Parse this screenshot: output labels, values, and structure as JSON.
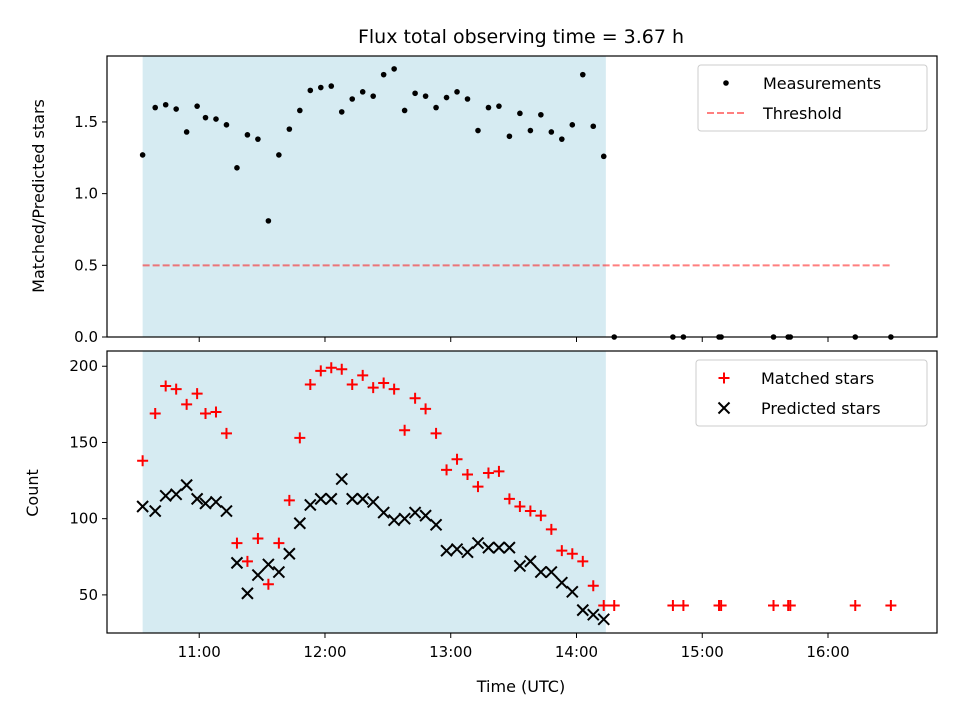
{
  "colors": {
    "shade": "#add8e6",
    "threshold": "#ff0000",
    "matched": "#ff0000",
    "predicted": "#000000",
    "measurements": "#000000"
  },
  "chart_data": [
    {
      "type": "scatter",
      "title": "Flux total observing time = 3.67 h",
      "xlabel": "",
      "ylabel": "Matched/Predicted stars",
      "xlim": [
        "10:16",
        "16:52"
      ],
      "ylim": [
        0,
        1.96
      ],
      "yticks": [
        0.0,
        0.5,
        1.0,
        1.5
      ],
      "ytick_labels": [
        "0.0",
        "0.5",
        "1.0",
        "1.5"
      ],
      "shaded_span": [
        "10:33",
        "14:14"
      ],
      "legend_position": "upper right",
      "series": [
        {
          "name": "Measurements",
          "marker": "dot",
          "x": [
            "10:33",
            "10:39",
            "10:44",
            "10:49",
            "10:54",
            "10:59",
            "11:03",
            "11:08",
            "11:13",
            "11:18",
            "11:23",
            "11:28",
            "11:33",
            "11:38",
            "11:43",
            "11:48",
            "11:53",
            "11:58",
            "12:03",
            "12:08",
            "12:13",
            "12:18",
            "12:23",
            "12:28",
            "12:33",
            "12:38",
            "12:43",
            "12:48",
            "12:53",
            "12:58",
            "13:03",
            "13:08",
            "13:13",
            "13:18",
            "13:23",
            "13:28",
            "13:33",
            "13:38",
            "13:43",
            "13:48",
            "13:53",
            "13:58",
            "14:03",
            "14:08",
            "14:13",
            "14:18",
            "14:46",
            "14:51",
            "15:08",
            "15:09",
            "15:34",
            "15:41",
            "15:42",
            "16:13",
            "16:30"
          ],
          "y": [
            1.27,
            1.6,
            1.62,
            1.59,
            1.43,
            1.61,
            1.53,
            1.52,
            1.48,
            1.18,
            1.41,
            1.38,
            0.81,
            1.27,
            1.45,
            1.58,
            1.72,
            1.74,
            1.75,
            1.57,
            1.66,
            1.71,
            1.68,
            1.83,
            1.87,
            1.58,
            1.7,
            1.68,
            1.6,
            1.67,
            1.71,
            1.66,
            1.44,
            1.6,
            1.61,
            1.4,
            1.56,
            1.44,
            1.55,
            1.43,
            1.38,
            1.48,
            1.83,
            1.47,
            1.26,
            0.0,
            0.0,
            0.0,
            0.0,
            0.0,
            0.0,
            0.0,
            0.0,
            0.0,
            0.0
          ]
        },
        {
          "name": "Threshold",
          "style": "dashed",
          "x": [
            "10:33",
            "16:30"
          ],
          "y": [
            0.5,
            0.5
          ]
        }
      ]
    },
    {
      "type": "scatter",
      "title": "",
      "xlabel": "Time (UTC)",
      "ylabel": "Count",
      "xlim": [
        "10:16",
        "16:52"
      ],
      "ylim": [
        25,
        210
      ],
      "yticks": [
        50,
        100,
        150,
        200
      ],
      "ytick_labels": [
        "50",
        "100",
        "150",
        "200"
      ],
      "xticks": [
        "11:00",
        "12:00",
        "13:00",
        "14:00",
        "15:00",
        "16:00"
      ],
      "xtick_labels": [
        "11:00",
        "12:00",
        "13:00",
        "14:00",
        "15:00",
        "16:00"
      ],
      "shaded_span": [
        "10:33",
        "14:14"
      ],
      "legend_position": "upper right",
      "series": [
        {
          "name": "Matched stars",
          "marker": "plus",
          "x": [
            "10:33",
            "10:39",
            "10:44",
            "10:49",
            "10:54",
            "10:59",
            "11:03",
            "11:08",
            "11:13",
            "11:18",
            "11:23",
            "11:28",
            "11:33",
            "11:38",
            "11:43",
            "11:48",
            "11:53",
            "11:58",
            "12:03",
            "12:08",
            "12:13",
            "12:18",
            "12:23",
            "12:28",
            "12:33",
            "12:38",
            "12:43",
            "12:48",
            "12:53",
            "12:58",
            "13:03",
            "13:08",
            "13:13",
            "13:18",
            "13:23",
            "13:28",
            "13:33",
            "13:38",
            "13:43",
            "13:48",
            "13:53",
            "13:58",
            "14:03",
            "14:08",
            "14:13",
            "14:18",
            "14:46",
            "14:51",
            "15:08",
            "15:09",
            "15:34",
            "15:41",
            "15:42",
            "16:13",
            "16:30"
          ],
          "y": [
            138,
            169,
            187,
            185,
            175,
            182,
            169,
            170,
            156,
            84,
            72,
            87,
            57,
            84,
            112,
            153,
            188,
            197,
            199,
            198,
            188,
            194,
            186,
            189,
            185,
            158,
            179,
            172,
            156,
            132,
            139,
            129,
            121,
            130,
            131,
            113,
            108,
            105,
            102,
            93,
            79,
            77,
            72,
            56,
            43,
            43,
            43,
            43,
            43,
            43,
            43,
            43,
            43,
            43,
            43
          ]
        },
        {
          "name": "Predicted stars",
          "marker": "x",
          "x": [
            "10:33",
            "10:39",
            "10:44",
            "10:49",
            "10:54",
            "10:59",
            "11:03",
            "11:08",
            "11:13",
            "11:18",
            "11:23",
            "11:28",
            "11:33",
            "11:38",
            "11:43",
            "11:48",
            "11:53",
            "11:58",
            "12:03",
            "12:08",
            "12:13",
            "12:18",
            "12:23",
            "12:28",
            "12:33",
            "12:38",
            "12:43",
            "12:48",
            "12:53",
            "12:58",
            "13:03",
            "13:08",
            "13:13",
            "13:18",
            "13:23",
            "13:28",
            "13:33",
            "13:38",
            "13:43",
            "13:48",
            "13:53",
            "13:58",
            "14:03",
            "14:08",
            "14:13"
          ],
          "y": [
            108,
            105,
            115,
            116,
            122,
            113,
            110,
            111,
            105,
            71,
            51,
            63,
            70,
            65,
            77,
            97,
            109,
            113,
            113,
            126,
            113,
            113,
            111,
            104,
            99,
            100,
            104,
            102,
            96,
            79,
            80,
            78,
            84,
            81,
            81,
            81,
            69,
            72,
            65,
            65,
            58,
            52,
            40,
            37,
            34
          ]
        }
      ]
    }
  ]
}
